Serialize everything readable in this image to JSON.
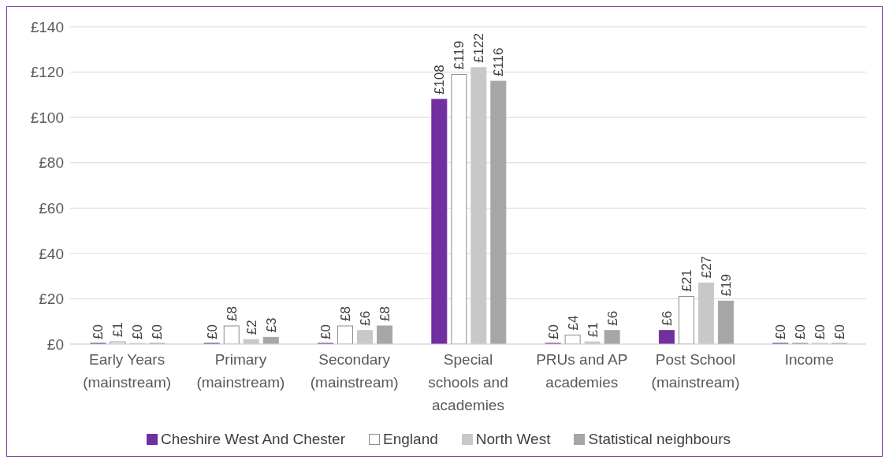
{
  "chart_data": {
    "type": "bar",
    "categories": [
      "Early Years (mainstream)",
      "Primary (mainstream)",
      "Secondary (mainstream)",
      "Special schools and academies",
      "PRUs and AP academies",
      "Post School (mainstream)",
      "Income"
    ],
    "series": [
      {
        "name": "Cheshire West And Chester",
        "color": "#7030a0",
        "values": [
          0,
          0,
          0,
          108,
          0,
          6,
          0
        ],
        "value_labels": [
          "£0",
          "£0",
          "£0",
          "£108",
          "£0",
          "£6",
          "£0"
        ]
      },
      {
        "name": "England",
        "color": "#ffffff",
        "values": [
          1,
          8,
          8,
          119,
          4,
          21,
          0
        ],
        "value_labels": [
          "£1",
          "£8",
          "£8",
          "£119",
          "£4",
          "£21",
          "£0"
        ]
      },
      {
        "name": "North West",
        "color": "#c8c8c8",
        "values": [
          0,
          2,
          6,
          122,
          1,
          27,
          0
        ],
        "value_labels": [
          "£0",
          "£2",
          "£6",
          "£122",
          "£1",
          "£27",
          "£0"
        ]
      },
      {
        "name": "Statistical neighbours",
        "color": "#a6a6a6",
        "values": [
          0,
          3,
          8,
          116,
          6,
          19,
          0
        ],
        "value_labels": [
          "£0",
          "£3",
          "£8",
          "£116",
          "£6",
          "£19",
          "£0"
        ]
      }
    ],
    "ylim": [
      0,
      140
    ],
    "yticks": [
      {
        "value": 0,
        "label": "£0"
      },
      {
        "value": 20,
        "label": "£20"
      },
      {
        "value": 40,
        "label": "£40"
      },
      {
        "value": 60,
        "label": "£60"
      },
      {
        "value": 80,
        "label": "£80"
      },
      {
        "value": 100,
        "label": "£100"
      },
      {
        "value": 120,
        "label": "£120"
      },
      {
        "value": 140,
        "label": "£140"
      }
    ],
    "grid": "y",
    "legend": "bottom"
  }
}
